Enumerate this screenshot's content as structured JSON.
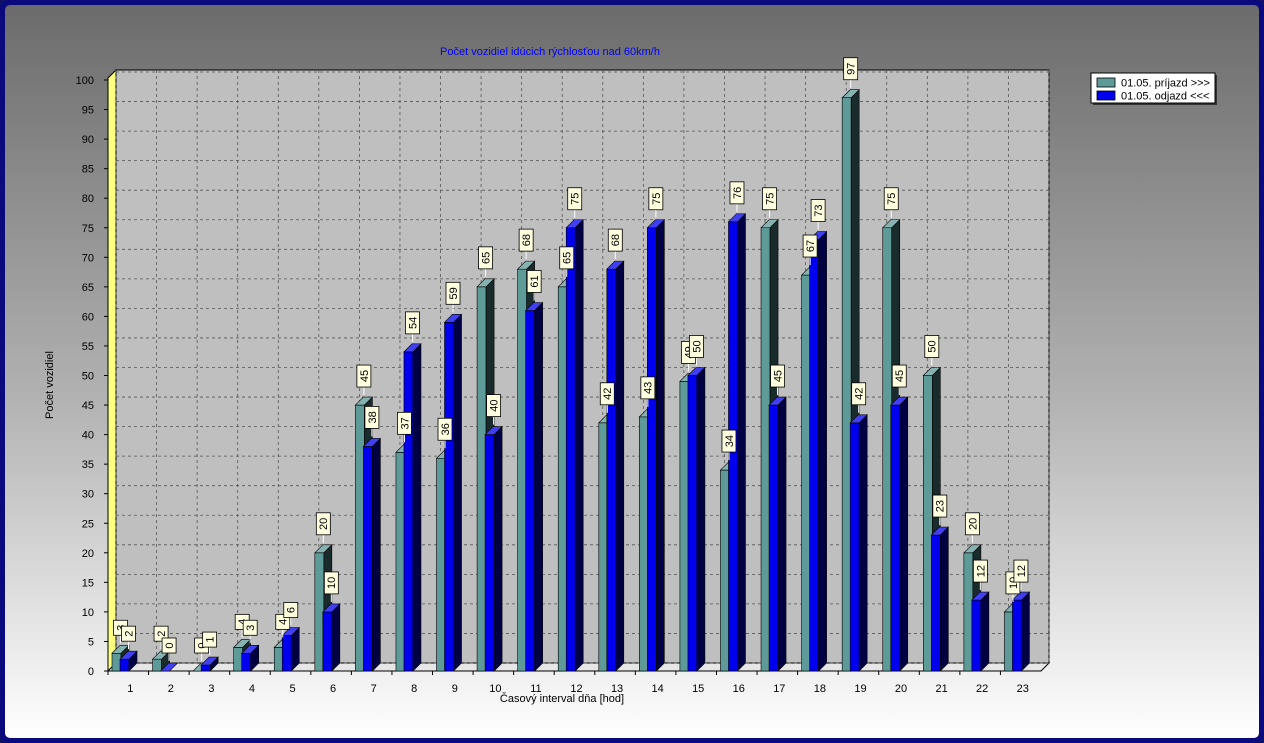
{
  "chart_data": {
    "type": "bar",
    "title": "Počet vozidiel idúcich rýchlosťou nad 60km/h",
    "xlabel": "Časový interval dňa [hod]",
    "ylabel": "Počet vozidiel",
    "ylim": [
      0,
      100
    ],
    "ytick_step": 5,
    "grid": true,
    "legend_position": "top-right",
    "categories": [
      "1",
      "2",
      "3",
      "4",
      "5",
      "6",
      "7",
      "8",
      "9",
      "10",
      "11",
      "12",
      "13",
      "14",
      "15",
      "16",
      "17",
      "18",
      "19",
      "20",
      "21",
      "22",
      "23"
    ],
    "series": [
      {
        "name": "01.05. príjazd >>>",
        "color": "#5e9a98",
        "values": [
          3,
          2,
          0,
          4,
          4,
          20,
          45,
          37,
          36,
          65,
          68,
          65,
          42,
          43,
          49,
          34,
          75,
          67,
          97,
          75,
          50,
          20,
          10
        ]
      },
      {
        "name": "01.05. odjazd <<<",
        "color": "#0000ee",
        "values": [
          2,
          0,
          1,
          3,
          6,
          10,
          38,
          54,
          59,
          40,
          61,
          75,
          68,
          75,
          50,
          76,
          45,
          73,
          42,
          45,
          23,
          12,
          12
        ]
      }
    ]
  }
}
